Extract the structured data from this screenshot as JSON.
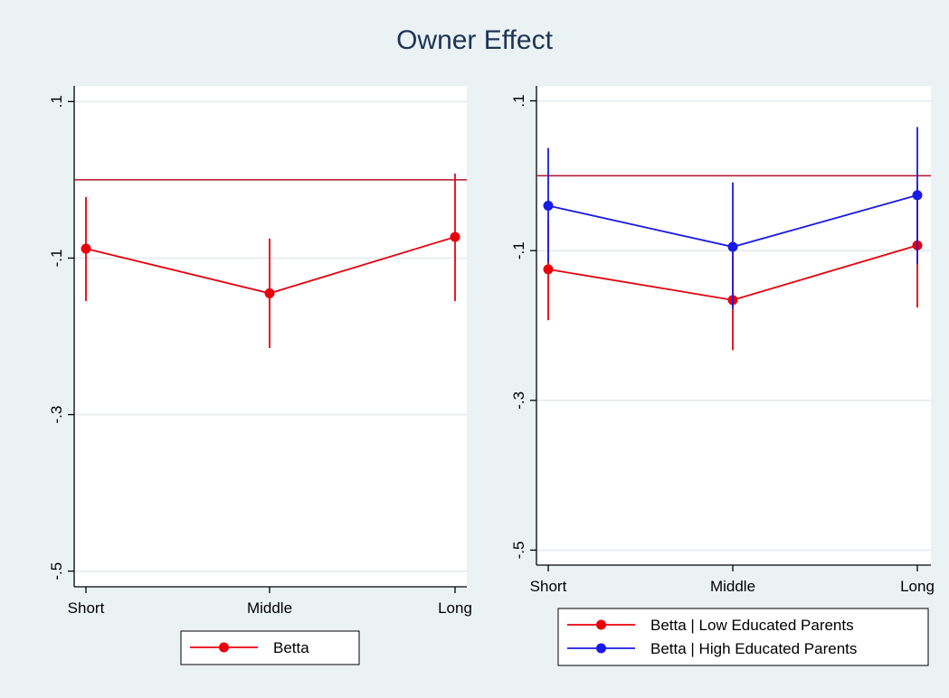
{
  "title": "Owner Effect",
  "colors": {
    "red": "#e8000b",
    "blue": "#1a1ae6",
    "refline": "#b0102a",
    "grid": "#e8eef0"
  },
  "chart_data": [
    {
      "type": "line",
      "error_bars": true,
      "categories": [
        "Short",
        "Middle",
        "Long"
      ],
      "ylim": [
        -0.52,
        0.12
      ],
      "yticks": [
        0.1,
        -0.1,
        -0.3,
        -0.5
      ],
      "ytick_labels": [
        ".1",
        "-.1",
        "-.3",
        "-.5"
      ],
      "reference_line_y": 0.0,
      "grid": true,
      "series": [
        {
          "name": "Betta",
          "color": "#e8000b",
          "values": [
            -0.088,
            -0.145,
            -0.073
          ],
          "ci_low": [
            -0.155,
            -0.215,
            -0.155
          ],
          "ci_high": [
            -0.022,
            -0.075,
            0.008
          ]
        }
      ],
      "legend": {
        "position": "bottom",
        "entries": [
          "Betta"
        ]
      }
    },
    {
      "type": "line",
      "error_bars": true,
      "categories": [
        "Short",
        "Middle",
        "Long"
      ],
      "ylim": [
        -0.52,
        0.12
      ],
      "yticks": [
        0.1,
        -0.1,
        -0.3,
        -0.5
      ],
      "ytick_labels": [
        ".1",
        "-.1",
        "-.3",
        "-.5"
      ],
      "reference_line_y": 0.0,
      "grid": true,
      "series": [
        {
          "name": "Betta | Low Educated Parents",
          "color": "#e8000b",
          "values": [
            -0.125,
            -0.166,
            -0.093
          ],
          "ci_low": [
            -0.193,
            -0.233,
            -0.176
          ],
          "ci_high": [
            -0.059,
            -0.099,
            -0.009
          ]
        },
        {
          "name": "Betta | High Educated Parents",
          "color": "#1a1ae6",
          "values": [
            -0.04,
            -0.095,
            -0.026
          ],
          "ci_low": [
            -0.116,
            -0.178,
            -0.118
          ],
          "ci_high": [
            0.037,
            -0.009,
            0.065
          ]
        }
      ],
      "legend": {
        "position": "bottom",
        "entries": [
          "Betta | Low Educated Parents",
          "Betta | High Educated Parents"
        ]
      }
    }
  ]
}
